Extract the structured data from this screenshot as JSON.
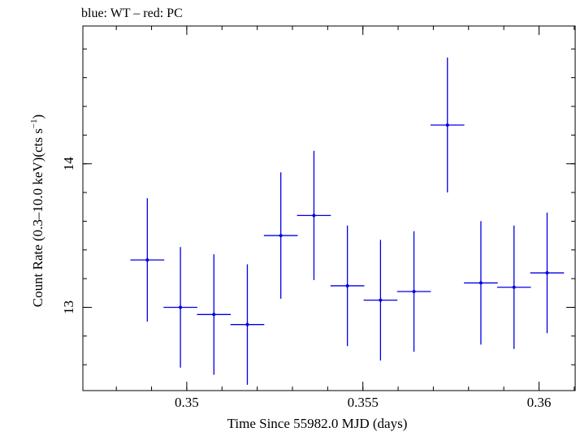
{
  "chart_data": {
    "type": "scatter",
    "title": "blue: WT – red: PC",
    "xlabel": "Time Since 55982.0 MJD (days)",
    "ylabel_main": "Count Rate (0.3–10.0 keV)(cts s",
    "ylabel_sup": "−1",
    "ylabel_close": ")",
    "xlim": [
      0.34705,
      0.36105
    ],
    "ylim": [
      12.42,
      14.96
    ],
    "x_major_ticks": [
      0.35,
      0.355,
      0.36
    ],
    "x_tick_labels": [
      "0.35",
      "0.355",
      "0.36"
    ],
    "x_minor_step": 0.001,
    "y_major_ticks": [
      13,
      14
    ],
    "y_tick_labels": [
      "13",
      "14"
    ],
    "y_minor_step": 0.2,
    "grid": false,
    "series": [
      {
        "color": "#0000e6",
        "points": [
          {
            "x": 0.34888,
            "xerr": 0.00048,
            "y": 13.33,
            "yerr": 0.43
          },
          {
            "x": 0.34982,
            "xerr": 0.00048,
            "y": 13.0,
            "yerr": 0.42
          },
          {
            "x": 0.35077,
            "xerr": 0.00048,
            "y": 12.95,
            "yerr": 0.42
          },
          {
            "x": 0.35172,
            "xerr": 0.00048,
            "y": 12.88,
            "yerr": 0.42
          },
          {
            "x": 0.35267,
            "xerr": 0.00048,
            "y": 13.5,
            "yerr": 0.44
          },
          {
            "x": 0.35361,
            "xerr": 0.00048,
            "y": 13.64,
            "yerr": 0.45
          },
          {
            "x": 0.35456,
            "xerr": 0.00048,
            "y": 13.15,
            "yerr": 0.42
          },
          {
            "x": 0.3555,
            "xerr": 0.00048,
            "y": 13.05,
            "yerr": 0.42
          },
          {
            "x": 0.35645,
            "xerr": 0.00048,
            "y": 13.11,
            "yerr": 0.42
          },
          {
            "x": 0.3574,
            "xerr": 0.00048,
            "y": 14.27,
            "yerr": 0.47
          },
          {
            "x": 0.35835,
            "xerr": 0.00048,
            "y": 13.17,
            "yerr": 0.43
          },
          {
            "x": 0.35929,
            "xerr": 0.00048,
            "y": 13.14,
            "yerr": 0.43
          },
          {
            "x": 0.36023,
            "xerr": 0.00048,
            "y": 13.24,
            "yerr": 0.42
          }
        ]
      }
    ]
  }
}
